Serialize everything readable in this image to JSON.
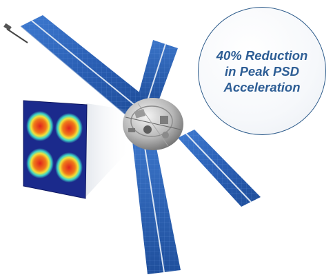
{
  "callout": {
    "lines": [
      "40% Reduction",
      "in Peak PSD",
      "Acceleration"
    ],
    "border_color": "#2f5d8c",
    "text_color": "#2e5e95"
  },
  "illustration": {
    "subject": "satellite-with-solar-panels",
    "panel_color": "#2a62b8",
    "inset": "psd-heatmap-plot"
  }
}
